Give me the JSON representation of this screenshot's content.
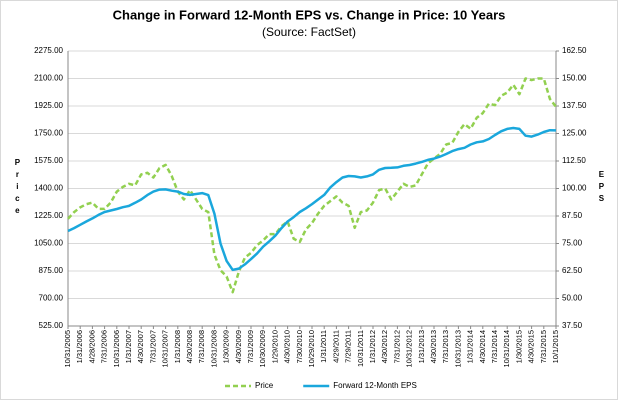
{
  "chart_data": {
    "type": "line",
    "title": "Change in Forward 12-Month EPS vs. Change in Price: 10 Years",
    "subtitle": "(Source: FactSet)",
    "y_label": "Price",
    "y2_label": "EPS",
    "categories": [
      "10/31/2005",
      null,
      "1/31/2006",
      null,
      "4/28/2006",
      null,
      "7/31/2006",
      null,
      "10/31/2006",
      null,
      "1/31/2007",
      null,
      "4/30/2007",
      null,
      "7/31/2007",
      null,
      "10/31/2007",
      null,
      "1/31/2008",
      null,
      "4/30/2008",
      null,
      "7/31/2008",
      null,
      "10/31/2008",
      null,
      "1/30/2009",
      null,
      "4/30/2009",
      null,
      "7/31/2009",
      null,
      "10/30/2009",
      null,
      "1/29/2010",
      null,
      "4/30/2010",
      null,
      "7/30/2010",
      null,
      "10/29/2010",
      null,
      "1/31/2011",
      null,
      "4/29/2011",
      null,
      "7/29/2011",
      null,
      "10/31/2011",
      null,
      "1/31/2012",
      null,
      "4/30/2012",
      null,
      "7/31/2012",
      null,
      "10/31/2012",
      null,
      "1/31/2013",
      null,
      "4/30/2013",
      null,
      "7/31/2013",
      null,
      "10/31/2013",
      null,
      "1/31/2014",
      null,
      "4/30/2014",
      null,
      "7/31/2014",
      null,
      "10/31/2014",
      null,
      "1/30/2015",
      null,
      "4/30/2015",
      null,
      "7/31/2015",
      null,
      "10/1/2015"
    ],
    "series": [
      {
        "name": "Price",
        "color": "#92d050",
        "dashed": true,
        "values": [
          1207,
          1250,
          1280,
          1300,
          1310,
          1270,
          1270,
          1310,
          1380,
          1410,
          1430,
          1420,
          1490,
          1500,
          1470,
          1530,
          1550,
          1480,
          1380,
          1330,
          1390,
          1330,
          1270,
          1250,
          980,
          880,
          840,
          740,
          870,
          960,
          990,
          1040,
          1070,
          1110,
          1110,
          1160,
          1190,
          1080,
          1060,
          1140,
          1180,
          1240,
          1290,
          1320,
          1350,
          1310,
          1290,
          1150,
          1250,
          1260,
          1310,
          1390,
          1400,
          1330,
          1380,
          1430,
          1410,
          1420,
          1490,
          1560,
          1590,
          1620,
          1680,
          1690,
          1760,
          1810,
          1780,
          1850,
          1880,
          1940,
          1930,
          1990,
          2010,
          2060,
          2000,
          2100,
          2090,
          2100,
          2100,
          1970,
          1920
        ]
      },
      {
        "name": "Forward 12-Month EPS",
        "color": "#1aa7dc",
        "axis": "y2",
        "values": [
          80.7,
          82,
          83.5,
          85,
          86.4,
          88,
          89.3,
          90,
          90.7,
          91.5,
          92.1,
          93.5,
          95,
          97,
          98.6,
          99.5,
          99.6,
          99,
          98.6,
          97.5,
          97.1,
          97.5,
          97.9,
          97,
          88.6,
          75,
          67.1,
          63,
          63.6,
          65.5,
          67.9,
          70.5,
          73.6,
          76,
          78.6,
          82,
          85,
          87,
          89.3,
          91,
          92.9,
          95,
          97.1,
          100.5,
          102.9,
          105,
          105.7,
          105.5,
          105,
          105.5,
          106.4,
          108.5,
          109.3,
          109.4,
          109.6,
          110.3,
          110.7,
          111.3,
          112.1,
          113,
          113.6,
          114.5,
          115.7,
          117,
          117.9,
          118.5,
          120,
          121,
          121.4,
          122.5,
          124.3,
          126,
          127.1,
          127.5,
          127.1,
          124,
          123.6,
          124.5,
          125.7,
          126.5,
          126.4
        ]
      }
    ],
    "ylim": [
      525,
      2275
    ],
    "yticks": [
      {
        "value": 525,
        "label": "525.00"
      },
      {
        "value": 700,
        "label": "700.00"
      },
      {
        "value": 875,
        "label": "875.00"
      },
      {
        "value": 1050,
        "label": "1050.00"
      },
      {
        "value": 1225,
        "label": "1225.00"
      },
      {
        "value": 1400,
        "label": "1400.00"
      },
      {
        "value": 1575,
        "label": "1575.00"
      },
      {
        "value": 1750,
        "label": "1750.00"
      },
      {
        "value": 1925,
        "label": "1925.00"
      },
      {
        "value": 2100,
        "label": "2100.00"
      },
      {
        "value": 2275,
        "label": "2275.00"
      }
    ],
    "y2lim": [
      37.5,
      162.5
    ],
    "y2ticks": [
      {
        "value": 37.5,
        "label": "37.50"
      },
      {
        "value": 50,
        "label": "50.00"
      },
      {
        "value": 62.5,
        "label": "62.50"
      },
      {
        "value": 75,
        "label": "75.00"
      },
      {
        "value": 87.5,
        "label": "87.50"
      },
      {
        "value": 100,
        "label": "100.00"
      },
      {
        "value": 112.5,
        "label": "112.50"
      },
      {
        "value": 125,
        "label": "125.00"
      },
      {
        "value": 137.5,
        "label": "137.50"
      },
      {
        "value": 150,
        "label": "150.00"
      },
      {
        "value": 162.5,
        "label": "162.50"
      }
    ],
    "grid": true,
    "legend": "bottom"
  }
}
